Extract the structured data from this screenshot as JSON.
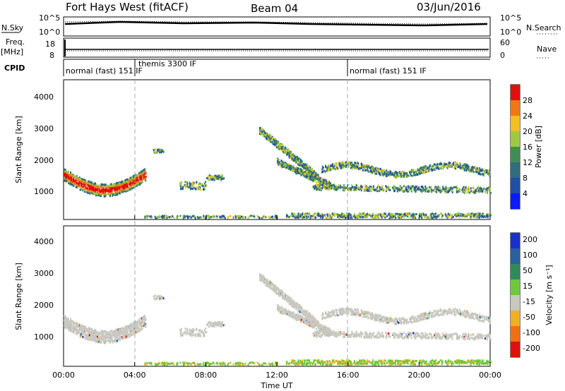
{
  "header": {
    "station": "Fort Hays West (fitACF)",
    "beam": "Beam 04",
    "date": "03/Jun/2016"
  },
  "side_labels": {
    "nsky": "N.Sky",
    "freq": "Freq.",
    "freq_unit": "[MHz]",
    "cpid": "CPID",
    "nsearch": "N.Search",
    "nave": "Nave"
  },
  "chart_data": [
    {
      "type": "line",
      "name": "noise-panel",
      "y_left_ticks": [
        "10^5",
        "10^0"
      ],
      "y_right_ticks": [
        "10^5",
        "10^0"
      ],
      "description_series": [
        "N.Sky",
        "N.Search"
      ]
    },
    {
      "type": "line",
      "name": "frequency-panel",
      "y_left_ticks": [
        "18",
        "8"
      ],
      "y_right_ticks": [
        "60",
        "0"
      ],
      "series": [
        {
          "name": "Freq.",
          "x": [
            0.0,
            24.0
          ],
          "values": [
            10.8,
            10.8
          ]
        },
        {
          "name": "Nave",
          "x": [
            0.0,
            24.0
          ],
          "values": [
            42,
            42
          ]
        }
      ]
    },
    {
      "type": "table",
      "name": "cpid-panel",
      "segments": [
        {
          "label": "normal (fast) 151 IF",
          "start": 0.0,
          "end": 4.0
        },
        {
          "label": "themis 3300 IF",
          "start": 4.0,
          "end": 16.0
        },
        {
          "label": "normal (fast) 151 IF",
          "start": 16.0,
          "end": 24.0
        }
      ]
    },
    {
      "type": "heatmap",
      "name": "power-panel",
      "ylabel": "Slant Range [km]",
      "colorbar_label": "Power [dB]",
      "yticks": [
        1000,
        2000,
        3000,
        4000
      ],
      "ylim": [
        180,
        4600
      ],
      "colorbar_ticks": [
        4,
        8,
        12,
        16,
        20,
        24,
        28
      ],
      "colorbar_range": [
        0,
        32
      ],
      "colors": [
        "#0a1bff",
        "#1f4fa8",
        "#2f6e7a",
        "#3f8e55",
        "#a0c840",
        "#f0c020",
        "#f07810",
        "#e01010"
      ]
    },
    {
      "type": "heatmap",
      "name": "velocity-panel",
      "ylabel": "Slant Range [km]",
      "colorbar_label": "Velocity [m s⁻¹]",
      "yticks": [
        1000,
        2000,
        3000,
        4000
      ],
      "ylim": [
        180,
        4600
      ],
      "colorbar_ticks": [
        200,
        100,
        50,
        15,
        -15,
        -50,
        -100,
        -200
      ],
      "colors": [
        "#1a2fd0",
        "#2a5fa0",
        "#2f8a5a",
        "#6ec83a",
        "#c8c8c0",
        "#f0b020",
        "#f07010",
        "#e01010"
      ]
    }
  ],
  "xaxis": {
    "ticks": [
      "00:00",
      "04:00",
      "08:00",
      "12:00",
      "16:00",
      "20:00",
      "00:00"
    ],
    "label": "Time UT"
  }
}
